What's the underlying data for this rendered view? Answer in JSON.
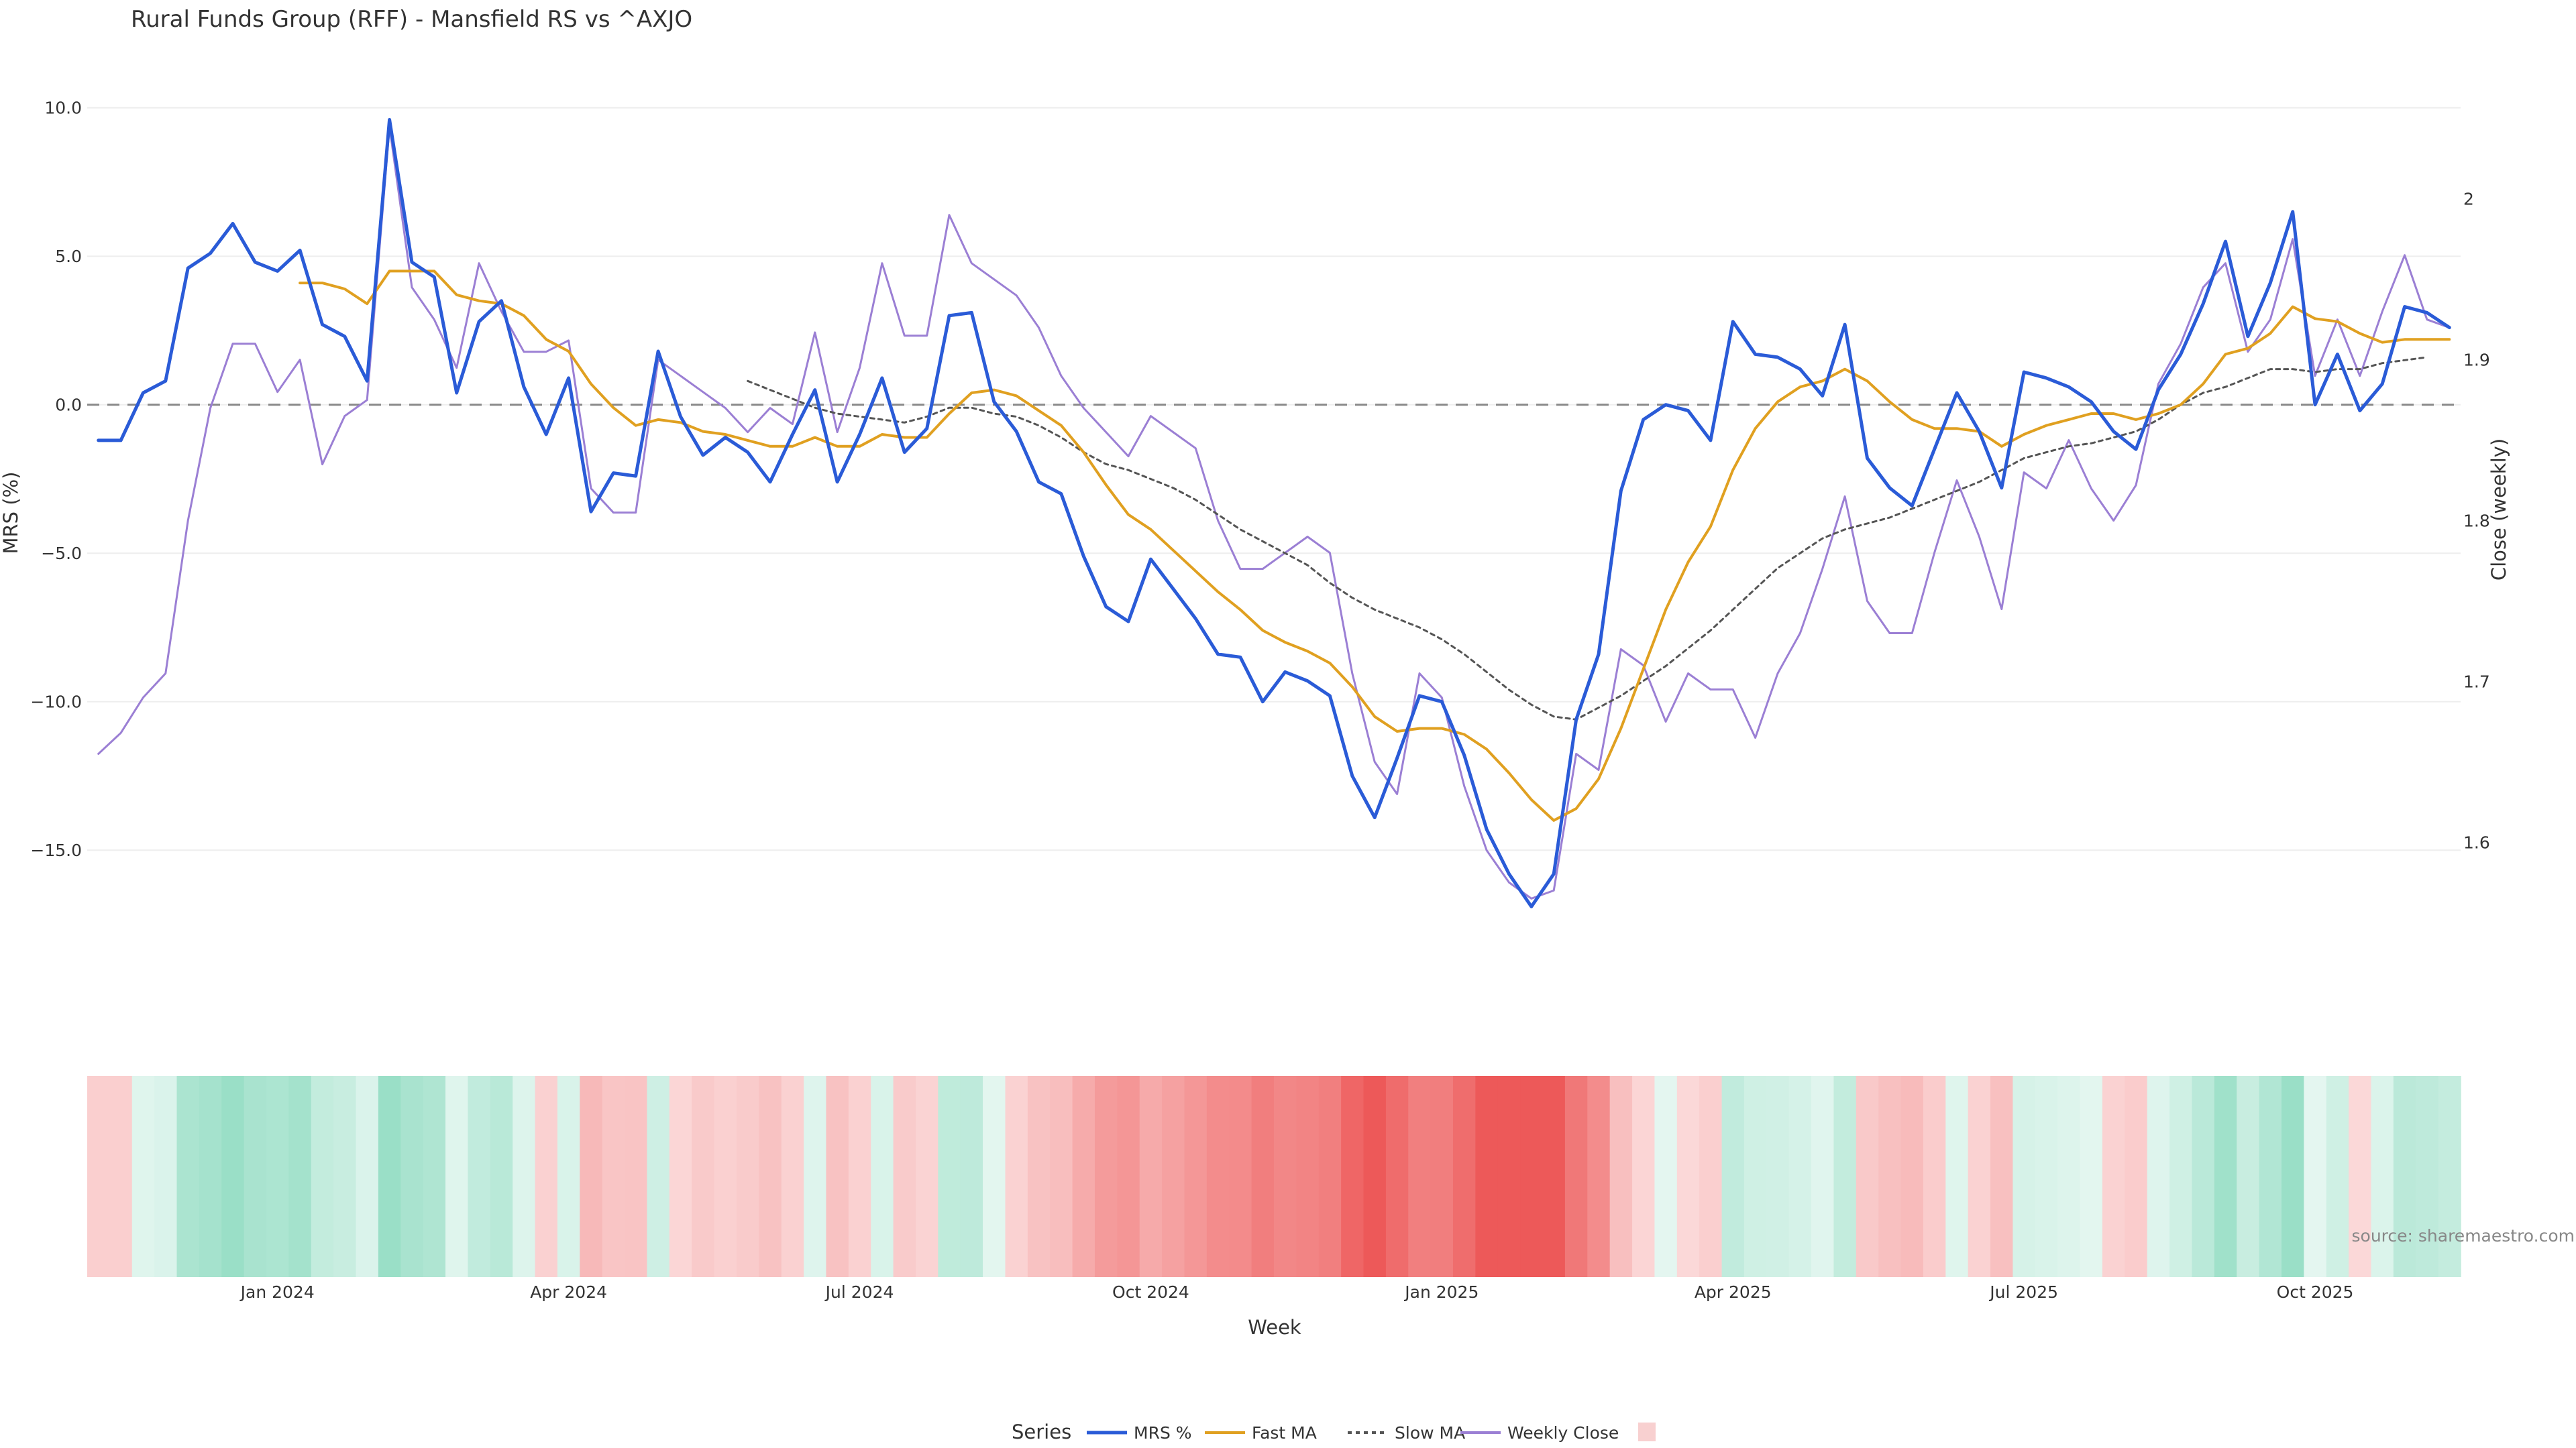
{
  "chart_data": {
    "type": "line",
    "title": "Rural Funds Group (RFF) - Mansfield RS vs ^AXJO",
    "xlabel": "Week",
    "ylabel": "MRS (%)",
    "y2label": "Close (weekly)",
    "source": "source: sharemaestro.com",
    "legend_title": "Series",
    "legend_position": "bottom",
    "ylim": [
      -18.2,
      11.1
    ],
    "y2lim": [
      1.536,
      2.077
    ],
    "y_ticks": [
      {
        "v": 10,
        "label": "10.0"
      },
      {
        "v": 5,
        "label": "5.0"
      },
      {
        "v": 0,
        "label": "0.0"
      },
      {
        "v": -5,
        "label": "−5.0"
      },
      {
        "v": -10,
        "label": "−10.0"
      },
      {
        "v": -15,
        "label": "−15.0"
      }
    ],
    "y2_ticks": [
      {
        "v": 2.0,
        "label": "2"
      },
      {
        "v": 1.9,
        "label": "1.9"
      },
      {
        "v": 1.8,
        "label": "1.8"
      },
      {
        "v": 1.7,
        "label": "1.7"
      },
      {
        "v": 1.6,
        "label": "1.6"
      }
    ],
    "x_ticks": [
      {
        "i": 8,
        "label": "Jan 2024"
      },
      {
        "i": 21,
        "label": "Apr 2024"
      },
      {
        "i": 34,
        "label": "Jul 2024"
      },
      {
        "i": 47,
        "label": "Oct 2024"
      },
      {
        "i": 60,
        "label": "Jan 2025"
      },
      {
        "i": 73,
        "label": "Apr 2025"
      },
      {
        "i": 86,
        "label": "Jul 2025"
      },
      {
        "i": 99,
        "label": "Oct 2025"
      }
    ],
    "n_weeks": 106,
    "zero_line": 0,
    "series": [
      {
        "name": "MRS %",
        "axis": "y",
        "color": "#2a5bd7",
        "style": "solid",
        "start": 0,
        "values": [
          -1.2,
          -1.2,
          0.4,
          0.8,
          4.6,
          5.1,
          6.1,
          4.8,
          4.5,
          5.2,
          2.7,
          2.3,
          0.8,
          9.6,
          4.8,
          4.3,
          0.4,
          2.8,
          3.5,
          0.6,
          -1.0,
          0.9,
          -3.6,
          -2.3,
          -2.4,
          1.8,
          -0.4,
          -1.7,
          -1.1,
          -1.6,
          -2.6,
          -1.0,
          0.5,
          -2.6,
          -1.0,
          0.9,
          -1.6,
          -0.8,
          3.0,
          3.1,
          0.1,
          -0.9,
          -2.6,
          -3.0,
          -5.1,
          -6.8,
          -7.3,
          -5.2,
          -6.2,
          -7.2,
          -8.4,
          -8.5,
          -10.0,
          -9.0,
          -9.3,
          -9.8,
          -12.5,
          -13.9,
          -11.9,
          -9.8,
          -10.0,
          -11.8,
          -14.3,
          -15.8,
          -16.9,
          -15.8,
          -10.6,
          -8.4,
          -2.9,
          -0.5,
          0.0,
          -0.2,
          -1.2,
          2.8,
          1.7,
          1.6,
          1.2,
          0.3,
          2.7,
          -1.8,
          -2.8,
          -3.4,
          -1.5,
          0.4,
          -0.9,
          -2.8,
          1.1,
          0.9,
          0.6,
          0.1,
          -0.9,
          -1.5,
          0.5,
          1.7,
          3.4,
          5.5,
          2.3,
          4.1,
          6.5,
          0.0,
          1.7,
          -0.2,
          0.7,
          3.3,
          3.1,
          2.6
        ]
      },
      {
        "name": "Fast MA",
        "axis": "y",
        "color": "#e0a020",
        "style": "solid",
        "start": 9,
        "values": [
          4.1,
          4.1,
          3.9,
          3.4,
          4.5,
          4.5,
          4.5,
          3.7,
          3.5,
          3.4,
          3.0,
          2.2,
          1.8,
          0.7,
          -0.1,
          -0.7,
          -0.5,
          -0.6,
          -0.9,
          -1.0,
          -1.2,
          -1.4,
          -1.4,
          -1.1,
          -1.4,
          -1.4,
          -1.0,
          -1.1,
          -1.1,
          -0.3,
          0.4,
          0.5,
          0.3,
          -0.2,
          -0.7,
          -1.6,
          -2.7,
          -3.7,
          -4.2,
          -4.9,
          -5.6,
          -6.3,
          -6.9,
          -7.6,
          -8.0,
          -8.3,
          -8.7,
          -9.5,
          -10.5,
          -11.0,
          -10.9,
          -10.9,
          -11.1,
          -11.6,
          -12.4,
          -13.3,
          -14.0,
          -13.6,
          -12.6,
          -10.9,
          -8.9,
          -6.9,
          -5.3,
          -4.1,
          -2.2,
          -0.8,
          0.1,
          0.6,
          0.8,
          1.2,
          0.8,
          0.1,
          -0.5,
          -0.8,
          -0.8,
          -0.9,
          -1.4,
          -1.0,
          -0.7,
          -0.5,
          -0.3,
          -0.3,
          -0.5,
          -0.3,
          0.0,
          0.7,
          1.7,
          1.9,
          2.4,
          3.3,
          2.9,
          2.8,
          2.4,
          2.1,
          2.2,
          2.2,
          2.2
        ]
      },
      {
        "name": "Slow MA",
        "axis": "y",
        "color": "#555555",
        "style": "dotted",
        "start": 29,
        "values": [
          0.8,
          0.5,
          0.2,
          -0.1,
          -0.3,
          -0.4,
          -0.5,
          -0.6,
          -0.4,
          -0.1,
          -0.1,
          -0.3,
          -0.4,
          -0.7,
          -1.1,
          -1.6,
          -2.0,
          -2.2,
          -2.5,
          -2.8,
          -3.2,
          -3.7,
          -4.2,
          -4.6,
          -5.0,
          -5.4,
          -6.0,
          -6.5,
          -6.9,
          -7.2,
          -7.5,
          -7.9,
          -8.4,
          -9.0,
          -9.6,
          -10.1,
          -10.5,
          -10.6,
          -10.2,
          -9.8,
          -9.3,
          -8.8,
          -8.2,
          -7.6,
          -6.9,
          -6.2,
          -5.5,
          -5.0,
          -4.5,
          -4.2,
          -4.0,
          -3.8,
          -3.5,
          -3.2,
          -2.9,
          -2.6,
          -2.2,
          -1.8,
          -1.6,
          -1.4,
          -1.3,
          -1.1,
          -0.9,
          -0.5,
          0.0,
          0.4,
          0.6,
          0.9,
          1.2,
          1.2,
          1.1,
          1.2,
          1.2,
          1.4,
          1.5,
          1.6
        ]
      },
      {
        "name": "Weekly Close",
        "axis": "y2",
        "color": "#9b7fd4",
        "style": "solid",
        "start": 0,
        "values": [
          1.655,
          1.668,
          1.69,
          1.705,
          1.8,
          1.87,
          1.91,
          1.91,
          1.88,
          1.9,
          1.835,
          1.865,
          1.875,
          2.045,
          1.945,
          1.925,
          1.895,
          1.96,
          1.93,
          1.905,
          1.905,
          1.912,
          1.82,
          1.805,
          1.805,
          1.9,
          1.89,
          1.88,
          1.87,
          1.855,
          1.87,
          1.86,
          1.917,
          1.855,
          1.895,
          1.96,
          1.915,
          1.915,
          1.99,
          1.96,
          1.95,
          1.94,
          1.92,
          1.89,
          1.87,
          1.855,
          1.84,
          1.865,
          1.855,
          1.845,
          1.8,
          1.77,
          1.77,
          1.78,
          1.79,
          1.78,
          1.705,
          1.65,
          1.63,
          1.705,
          1.69,
          1.635,
          1.595,
          1.575,
          1.565,
          1.57,
          1.655,
          1.645,
          1.72,
          1.71,
          1.675,
          1.705,
          1.695,
          1.695,
          1.665,
          1.705,
          1.73,
          1.77,
          1.815,
          1.75,
          1.73,
          1.73,
          1.78,
          1.825,
          1.79,
          1.745,
          1.83,
          1.82,
          1.85,
          1.82,
          1.8,
          1.822,
          1.885,
          1.91,
          1.945,
          1.96,
          1.905,
          1.925,
          1.975,
          1.89,
          1.925,
          1.89,
          1.93,
          1.965,
          1.925,
          1.92
        ]
      }
    ],
    "heatmap": {
      "name": "MRS %",
      "note": "bottom strip colored by MRS value: green positive, red negative"
    }
  }
}
